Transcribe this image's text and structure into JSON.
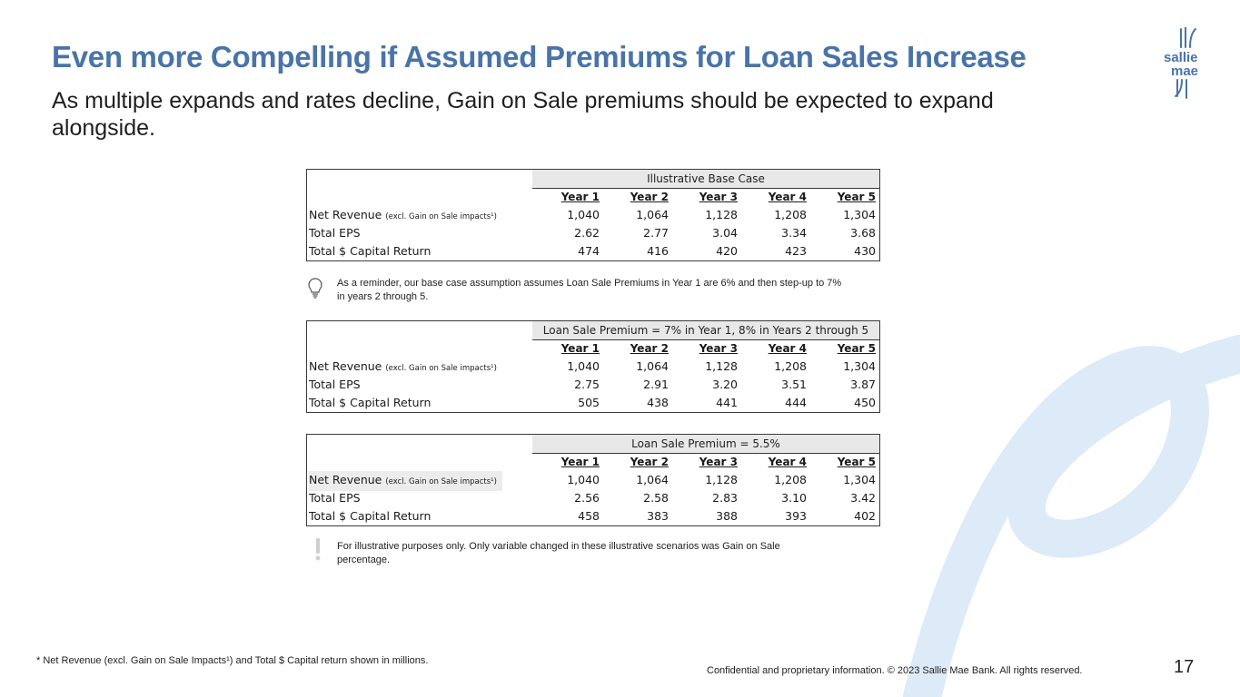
{
  "header": {
    "title": "Even more Compelling if Assumed Premiums for Loan Sales Increase",
    "subtitle": "As multiple expands and rates decline, Gain on Sale premiums should be expected to expand alongside."
  },
  "logo": {
    "line1": "sallie",
    "line2": "mae"
  },
  "tables": [
    {
      "band": "Illustrative Base Case",
      "years": [
        "Year 1",
        "Year 2",
        "Year 3",
        "Year 4",
        "Year 5"
      ],
      "rows": [
        {
          "label": "Net Revenue",
          "sub": "(excl. Gain on Sale impacts¹)",
          "values": [
            "1,040",
            "1,064",
            "1,128",
            "1,208",
            "1,304"
          ]
        },
        {
          "label": "Total EPS",
          "sub": "",
          "values": [
            "2.62",
            "2.77",
            "3.04",
            "3.34",
            "3.68"
          ]
        },
        {
          "label": "Total $ Capital Return",
          "sub": "",
          "values": [
            "474",
            "416",
            "420",
            "423",
            "430"
          ]
        }
      ]
    },
    {
      "band": "Loan Sale Premium = 7% in Year 1, 8% in Years 2 through 5",
      "years": [
        "Year 1",
        "Year 2",
        "Year 3",
        "Year 4",
        "Year 5"
      ],
      "rows": [
        {
          "label": "Net Revenue",
          "sub": "(excl. Gain on Sale impacts¹)",
          "values": [
            "1,040",
            "1,064",
            "1,128",
            "1,208",
            "1,304"
          ]
        },
        {
          "label": "Total EPS",
          "sub": "",
          "values": [
            "2.75",
            "2.91",
            "3.20",
            "3.51",
            "3.87"
          ]
        },
        {
          "label": "Total $ Capital Return",
          "sub": "",
          "values": [
            "505",
            "438",
            "441",
            "444",
            "450"
          ]
        }
      ]
    },
    {
      "band": "Loan Sale Premium = 5.5%",
      "years": [
        "Year 1",
        "Year 2",
        "Year 3",
        "Year 4",
        "Year 5"
      ],
      "rows": [
        {
          "label": "Net Revenue",
          "sub": "(excl. Gain on Sale impacts¹)",
          "values": [
            "1,040",
            "1,064",
            "1,128",
            "1,208",
            "1,304"
          ]
        },
        {
          "label": "Total EPS",
          "sub": "",
          "values": [
            "2.56",
            "2.58",
            "2.83",
            "3.10",
            "3.42"
          ]
        },
        {
          "label": "Total $ Capital Return",
          "sub": "",
          "values": [
            "458",
            "383",
            "388",
            "393",
            "402"
          ]
        }
      ]
    }
  ],
  "notes": {
    "reminder": "As a reminder, our base case assumption assumes Loan Sale Premiums in Year 1 are 6% and then step-up to 7% in years 2 through 5.",
    "illustrative": "For illustrative purposes only. Only variable changed in these illustrative scenarios was Gain on Sale percentage."
  },
  "footer": {
    "footnote": "* Net Revenue (excl. Gain on Sale Impacts¹) and Total $ Capital return shown in millions.",
    "confidential": "Confidential and proprietary information. © 2023 Sallie Mae Bank. All rights reserved.",
    "page_number": "17"
  },
  "colors": {
    "accent": "#4a74a8",
    "decor": "#dcebf7"
  }
}
